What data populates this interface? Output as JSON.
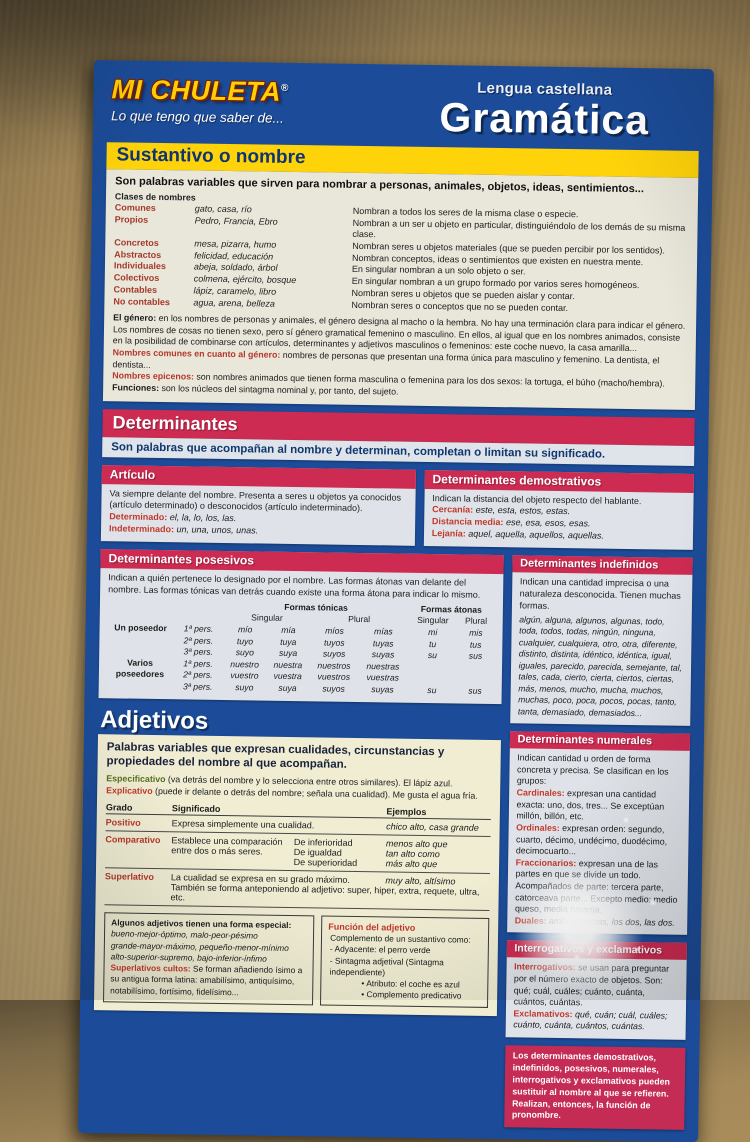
{
  "colors": {
    "card_blue": "#1c4c99",
    "header_yellow": "#ffd30a",
    "section_red": "#cd2b52",
    "panel_cream": "#e9e6da",
    "panel_blue_grey": "#dfe3e9",
    "panel_yellow": "#f0edd3",
    "keyword_red": "#c2392b",
    "label_maroon": "#a5392b",
    "cardboard": "#b0935e"
  },
  "header": {
    "logo": "MI CHULETA",
    "reg": "®",
    "tagline": "Lo que tengo que saber de...",
    "subject": "Lengua castellana",
    "title": "Gramática"
  },
  "sustantivo": {
    "title": "Sustantivo o nombre",
    "intro": "Son palabras variables que sirven para nombrar a personas, animales, objetos, ideas, sentimientos...",
    "classes_label": "Clases de nombres",
    "classes": [
      {
        "name": "Comunes",
        "ex": "gato, casa, río",
        "desc": "Nombran a todos los seres de la misma clase o especie."
      },
      {
        "name": "Propios",
        "ex": "Pedro, Francia, Ebro",
        "desc": "Nombran a un ser u objeto en particular, distinguiéndolo de los demás de su misma clase."
      },
      {
        "name": "Concretos",
        "ex": "mesa, pizarra, humo",
        "desc": "Nombran seres u objetos materiales (que se pueden percibir por los sentidos)."
      },
      {
        "name": "Abstractos",
        "ex": "felicidad, educación",
        "desc": "Nombran conceptos, ideas o sentimientos que existen en nuestra mente."
      },
      {
        "name": "Individuales",
        "ex": "abeja, soldado, árbol",
        "desc": "En singular nombran a un solo objeto o ser."
      },
      {
        "name": "Colectivos",
        "ex": "colmena, ejército, bosque",
        "desc": "En singular nombran a un grupo formado por varios seres homogéneos."
      },
      {
        "name": "Contables",
        "ex": "lápiz, caramelo, libro",
        "desc": "Nombran seres u objetos que se pueden aislar y contar."
      },
      {
        "name": "No contables",
        "ex": "agua, arena, belleza",
        "desc": "Nombran seres o conceptos que no se pueden contar."
      }
    ],
    "notes": [
      {
        "label": "El género:",
        "text": "en los nombres de personas y animales, el género designa al macho o la hembra. No hay una terminación clara para indicar el género."
      },
      {
        "label": "",
        "text": "Los nombres de cosas no tienen sexo, pero sí género gramatical femenino o masculino. En ellos, al igual que en los nombres animados, consiste en la posibilidad de combinarse con artículos, determinantes y adjetivos masculinos o femeninos: este coche nuevo, la casa amarilla..."
      },
      {
        "label": "Nombres comunes en cuanto al género:",
        "text": "nombres de personas que presentan una forma única para masculino y femenino. La dentista, el dentista..."
      },
      {
        "label": "Nombres epicenos:",
        "text": "son nombres animados que tienen forma masculina o femenina para los dos sexos: la tortuga, el búho (macho/hembra)."
      },
      {
        "label": "Funciones:",
        "text": "son los núcleos del sintagma nominal y, por tanto, del sujeto."
      }
    ]
  },
  "determinantes": {
    "title": "Determinantes",
    "intro": "Son palabras que acompañan al nombre y determinan, completan o limitan su significado.",
    "articulo": {
      "title": "Artículo",
      "body": "Va siempre delante del nombre. Presenta a seres u objetos ya conocidos (artículo determinado) o desconocidos (artículo indeterminado).",
      "lines": [
        {
          "label": "Determinado:",
          "text": "el, la, lo, los, las."
        },
        {
          "label": "Indeterminado:",
          "text": "un, una, unos, unas."
        }
      ]
    },
    "demostrativos": {
      "title": "Determinantes demostrativos",
      "body": "Indican la distancia del objeto respecto del hablante.",
      "lines": [
        {
          "label": "Cercanía:",
          "text": "este, esta, estos, estas."
        },
        {
          "label": "Distancia media:",
          "text": "ese, esa, esos, esas."
        },
        {
          "label": "Lejanía:",
          "text": "aquel, aquella, aquellos, aquellas."
        }
      ]
    },
    "posesivos": {
      "title": "Determinantes posesivos",
      "body": "Indican a quién pertenece lo designado por el nombre. Las formas átonas van delante del nombre. Las formas tónicas van detrás cuando existe una forma átona para indicar lo mismo.",
      "tonicas_label": "Formas tónicas",
      "atonas_label": "Formas átonas",
      "singular": "Singular",
      "plural": "Plural",
      "group1": "Un poseedor",
      "group2": "Varios poseedores",
      "rows": [
        [
          "1ª pers.",
          "mío",
          "mía",
          "míos",
          "mías",
          "mi",
          "mis"
        ],
        [
          "2ª pers.",
          "tuyo",
          "tuya",
          "tuyos",
          "tuyas",
          "tu",
          "tus"
        ],
        [
          "3ª pers.",
          "suyo",
          "suya",
          "suyos",
          "suyas",
          "su",
          "sus"
        ],
        [
          "1ª pers.",
          "nuestro",
          "nuestra",
          "nuestros",
          "nuestras",
          "",
          ""
        ],
        [
          "2ª pers.",
          "vuestro",
          "vuestra",
          "vuestros",
          "vuestras",
          "",
          ""
        ],
        [
          "3ª pers.",
          "suyo",
          "suya",
          "suyos",
          "suyas",
          "su",
          "sus"
        ]
      ]
    },
    "indefinidos": {
      "title": "Determinantes indefinidos",
      "body": "Indican una cantidad imprecisa o una naturaleza desconocida. Tienen muchas formas.",
      "list": "algún, alguna, algunos, algunas, todo, toda, todos, todas, ningún, ninguna, cualquier, cualquiera, otro, otra, diferente, distinto, distinta, idéntico, idéntica, igual, iguales, parecido, parecida, semejante, tal, tales, cada, cierto, cierta, ciertos, ciertas, más, menos, mucho, mucha, muchos, muchas, poco, poca, pocos, pocas, tanto, tanta, demasiado, demasiados..."
    },
    "numerales": {
      "title": "Determinantes numerales",
      "body": "Indican cantidad u orden de forma concreta y precisa. Se clasifican en los grupos:",
      "lines": [
        {
          "label": "Cardinales:",
          "text": "expresan una cantidad exacta: uno, dos, tres... Se exceptúan millón, billón, etc."
        },
        {
          "label": "Ordinales:",
          "text": "expresan orden: segundo, cuarto, décimo, undécimo, duodécimo, decimocuarto..."
        },
        {
          "label": "Fraccionarios:",
          "text": "expresan una de las partes en que se divide un todo. Acompañados de parte: tercera parte, catorceava parte... Excepto medio: medio queso, media naranja."
        },
        {
          "label": "Duales:",
          "text": "ambos, ambas, los dos, las dos."
        }
      ]
    },
    "interrogativos": {
      "title": "Interrogativos y exclamativos",
      "lines": [
        {
          "label": "Interrogativos:",
          "text": "se usan para preguntar por el número exacto de objetos. Son: qué; cuál, cuáles; cuánto, cuánta, cuántos, cuántas."
        },
        {
          "label": "Exclamativos:",
          "text": "qué, cuán; cuál, cuáles; cuánto, cuánta, cuántos, cuántas."
        }
      ]
    },
    "pronombre_note": {
      "text": "Los determinantes demostrativos, indefinidos, posesivos, numerales, interrogativos y exclamativos pueden sustituir al nombre al que se refieren.",
      "emphasis": "Realizan, entonces, la función de pronombre."
    }
  },
  "adjetivos": {
    "title": "Adjetivos",
    "intro": "Palabras variables que expresan cualidades, circunstancias y propiedades del nombre al que acompañan.",
    "tipo_lines": [
      {
        "label": "Especificativo",
        "text": "(va detrás del nombre y lo selecciona entre otros similares). El lápiz azul."
      },
      {
        "label": "Explicativo",
        "text": "(puede ir delante o detrás del nombre; señala una cualidad). Me gusta el agua fría."
      }
    ],
    "grados": {
      "headers": {
        "grado": "Grado",
        "significado": "Significado",
        "ejemplos": "Ejemplos"
      },
      "positivo": {
        "name": "Positivo",
        "sig": "Expresa simplemente una cualidad.",
        "ej": "chico alto, casa grande"
      },
      "comparativo": {
        "name": "Comparativo",
        "sig": "Establece una comparación entre dos o más seres.",
        "tipos": [
          "De inferioridad",
          "De igualdad",
          "De superioridad"
        ],
        "ejs": [
          "menos alto que",
          "tan alto como",
          "más alto que"
        ]
      },
      "superlativo": {
        "name": "Superlativo",
        "sig": "La cualidad se expresa en su grado máximo.",
        "ej": "muy alto, altísimo",
        "extra": "También se forma anteponiendo al adjetivo: super, hiper, extra, requete, ultra, etc."
      }
    },
    "especial": {
      "title": "Algunos adjetivos tienen una forma especial:",
      "lines": [
        "bueno-mejor-óptimo, malo-peor-pésimo",
        "grande-mayor-máximo, pequeño-menor-mínimo",
        "alto-superior-supremo, bajo-inferior-ínfimo"
      ],
      "cultos_label": "Superlativos cultos:",
      "cultos_text": "Se forman añadiendo ísimo a su antigua forma latina: amabilísimo, antiquísimo, notabilísimo, fortísimo, fidelísimo..."
    },
    "funcion": {
      "title": "Función del adjetivo",
      "lines": [
        "Complemento de un sustantivo como:",
        "- Adyacente: el perro verde",
        "- Sintagma adjetival (Sintagma independiente)",
        "• Atributo: el coche es azul",
        "• Complemento predicativo"
      ]
    }
  }
}
